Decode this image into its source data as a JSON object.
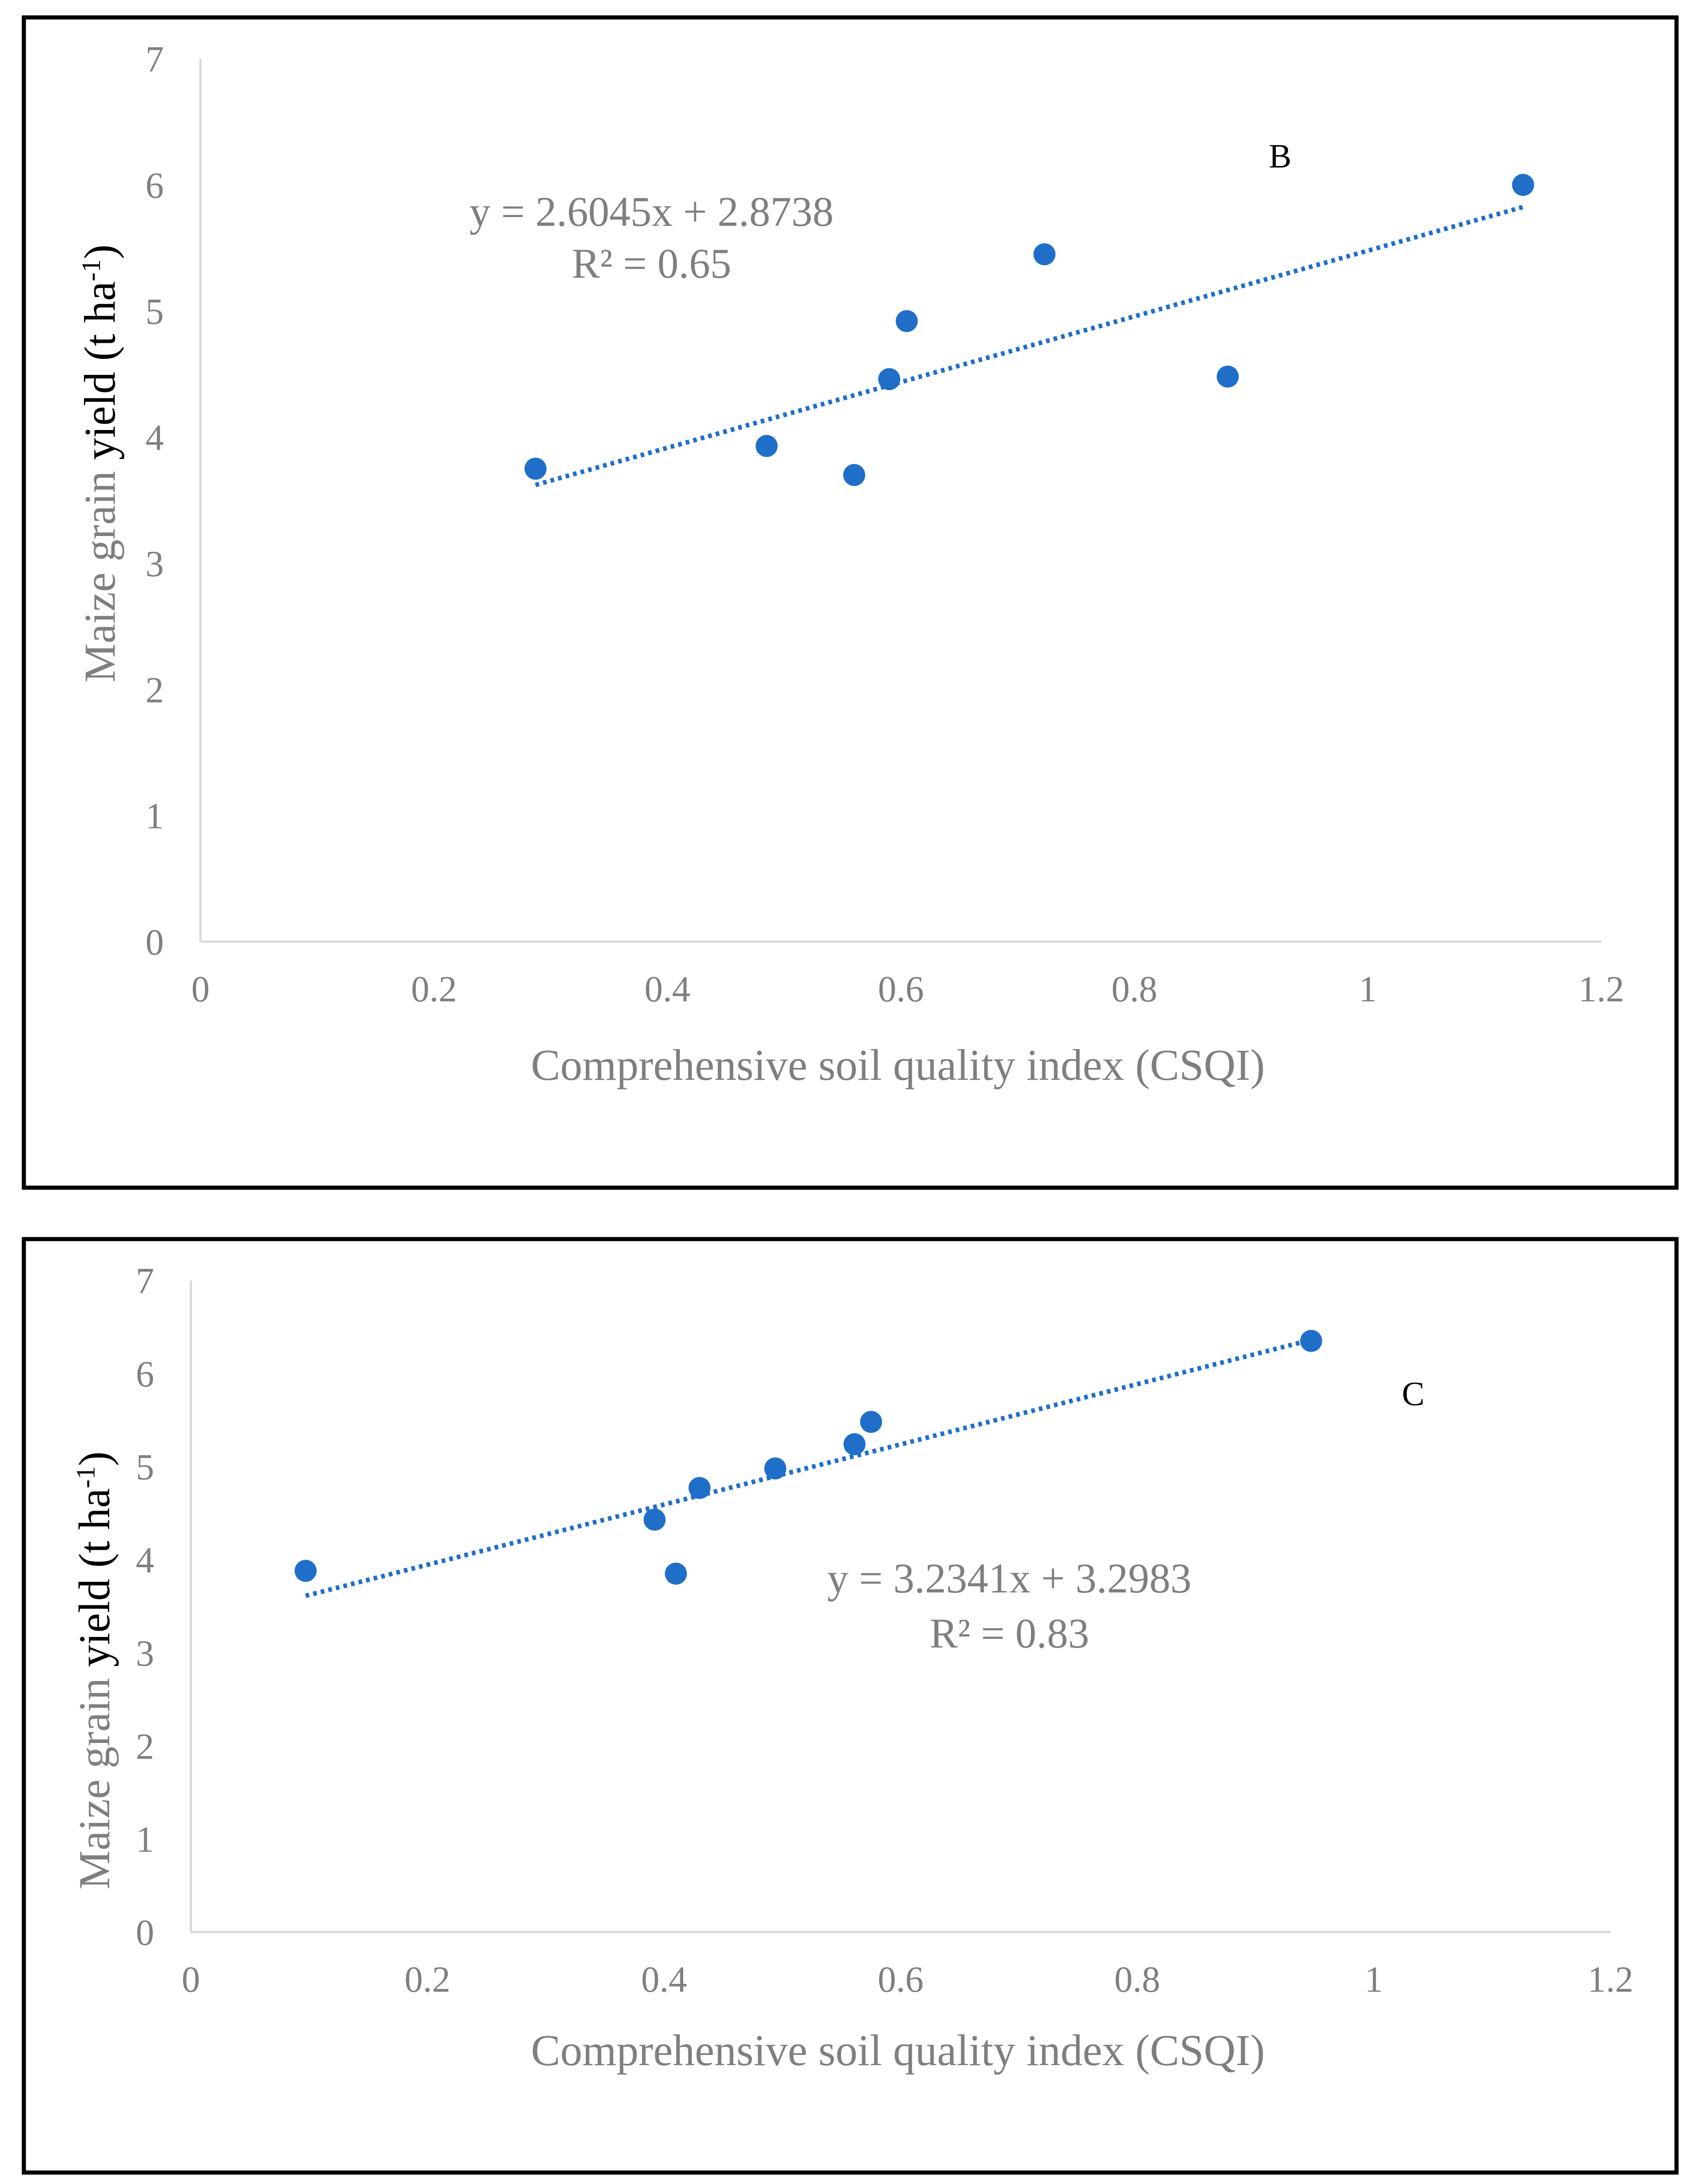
{
  "colors": {
    "marker": "#1f6fc9",
    "trendline": "#1f6fc9",
    "axis": "#d9d9d9",
    "text": "#7f7f7f",
    "frame": "#000000"
  },
  "chart_data": [
    {
      "type": "scatter",
      "panel_label": "B",
      "xlabel": "Comprehensive soil quality index (CSQI)",
      "ylabel_main": "Maize grain ",
      "ylabel_bold": "yield",
      "ylabel_unit": " (t ha",
      "ylabel_sup": "-1",
      "ylabel_close": ")",
      "xlim": [
        0,
        1.2
      ],
      "ylim": [
        0,
        7
      ],
      "xticks": [
        0,
        0.2,
        0.4,
        0.6,
        0.8,
        1,
        1.2
      ],
      "xtick_labels": [
        "0",
        "0.2",
        "0.4",
        "0.6",
        "0.8",
        "1",
        "1.2"
      ],
      "yticks": [
        0,
        1,
        2,
        3,
        4,
        5,
        6,
        7
      ],
      "ytick_labels": [
        "0",
        "1",
        "2",
        "3",
        "4",
        "5",
        "6",
        "7"
      ],
      "x": [
        0.287,
        0.485,
        0.56,
        0.59,
        0.605,
        0.723,
        0.88,
        1.133
      ],
      "y": [
        3.75,
        3.93,
        3.7,
        4.46,
        4.92,
        5.45,
        4.48,
        6.0
      ],
      "trendline": {
        "slope": 2.6045,
        "intercept": 2.8738,
        "x_range": [
          0.287,
          1.133
        ]
      },
      "equation": "y = 2.6045x + 2.8738",
      "r2_text": "R² = 0.65"
    },
    {
      "type": "scatter",
      "panel_label": "C",
      "xlabel": "Comprehensive soil quality index (CSQI)",
      "ylabel_main": "Maize grain ",
      "ylabel_bold": "yield",
      "ylabel_unit": " (t ha",
      "ylabel_sup": "-1",
      "ylabel_close": ")",
      "xlim": [
        0,
        1.2
      ],
      "ylim": [
        0,
        7
      ],
      "xticks": [
        0,
        0.2,
        0.4,
        0.6,
        0.8,
        1,
        1.2
      ],
      "xtick_labels": [
        "0",
        "0.2",
        "0.4",
        "0.6",
        "0.8",
        "1",
        "1.2"
      ],
      "yticks": [
        0,
        1,
        2,
        3,
        4,
        5,
        6,
        7
      ],
      "ytick_labels": [
        "0",
        "1",
        "2",
        "3",
        "4",
        "5",
        "6",
        "7"
      ],
      "x": [
        0.097,
        0.392,
        0.41,
        0.43,
        0.494,
        0.561,
        0.575,
        0.947
      ],
      "y": [
        3.88,
        4.43,
        3.85,
        4.77,
        4.98,
        5.24,
        5.48,
        6.35
      ],
      "trendline": {
        "slope": 3.2341,
        "intercept": 3.2983,
        "x_range": [
          0.097,
          0.947
        ]
      },
      "equation": "y = 3.2341x + 3.2983",
      "r2_text": "R² = 0.83"
    }
  ]
}
